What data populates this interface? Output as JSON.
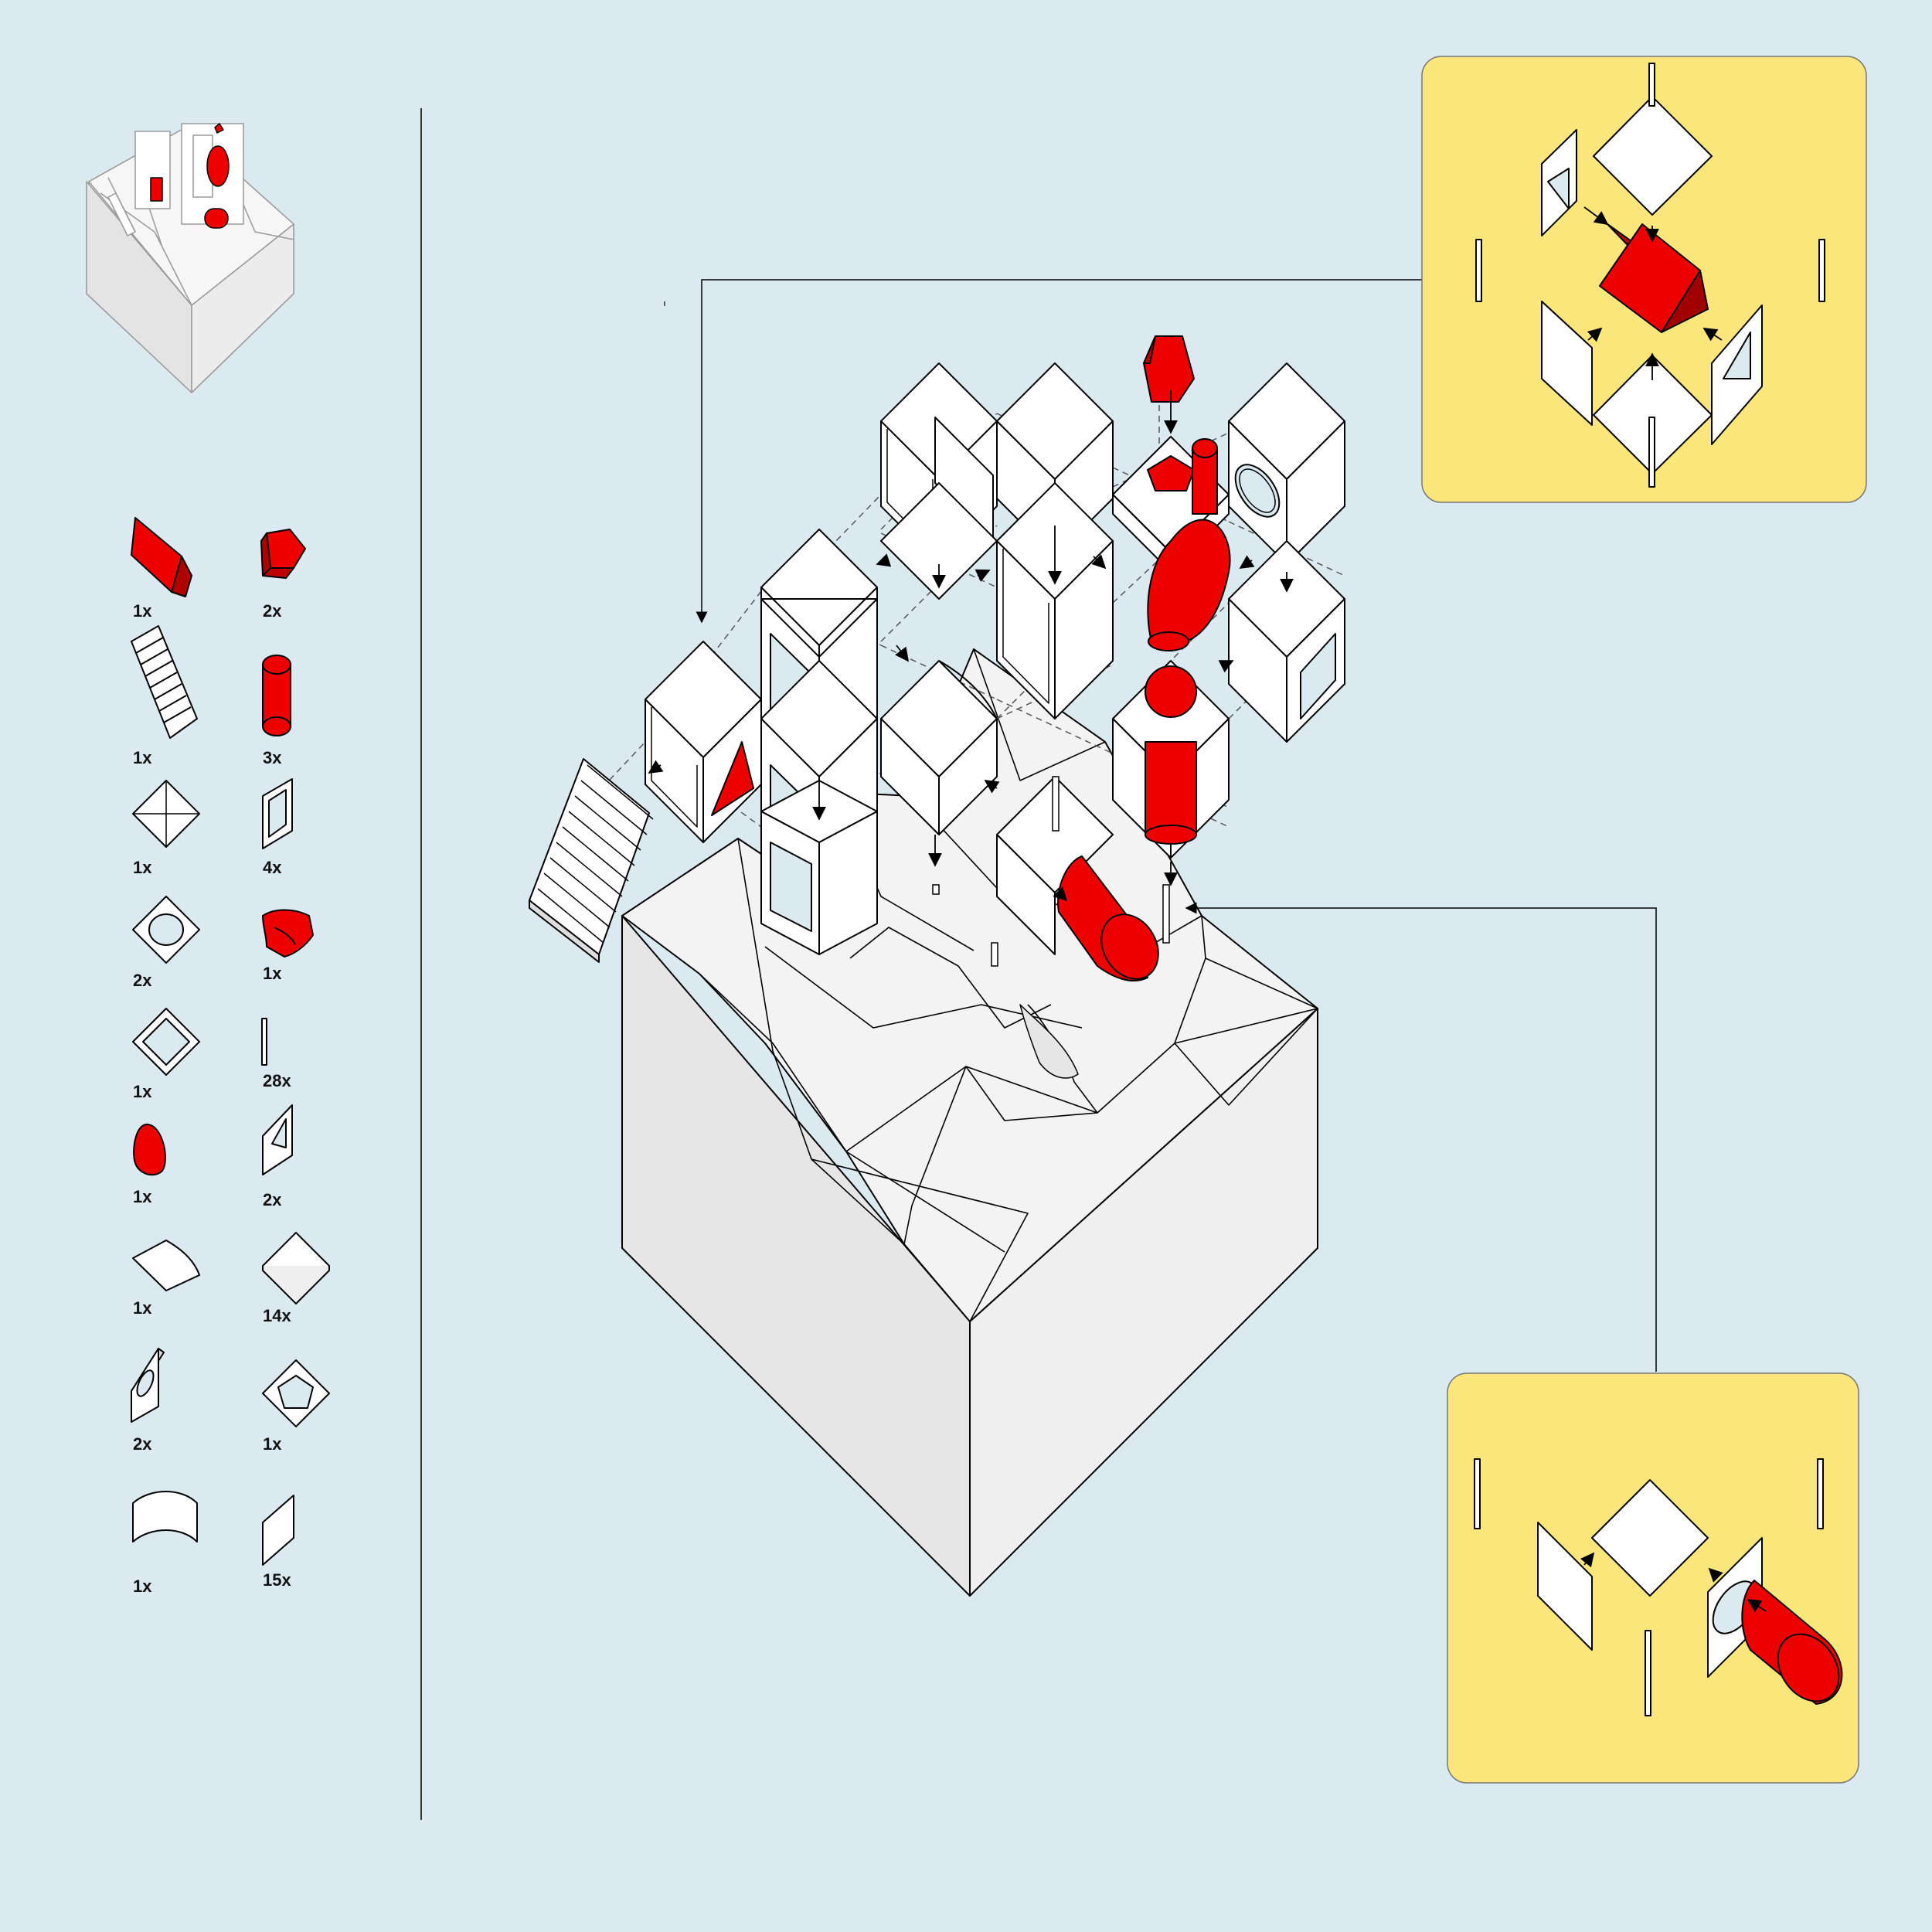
{
  "colors": {
    "background": "#dbeaf0",
    "accent_red": "#ee0000",
    "panel_yellow": "#fbe67c",
    "stroke": "#000000",
    "face_white": "#ffffff",
    "terrain_top": "#f3f3f3",
    "terrain_side": "#e6e6e6"
  },
  "parts_list": {
    "left_column": [
      {
        "icon": "red-wedge-icon",
        "qty": "1x"
      },
      {
        "icon": "staircase-icon",
        "qty": "1x"
      },
      {
        "icon": "pyramid-roof-icon",
        "qty": "1x"
      },
      {
        "icon": "round-hole-plate-icon",
        "qty": "2x"
      },
      {
        "icon": "square-frame-plate-icon",
        "qty": "1x"
      },
      {
        "icon": "red-egg-icon",
        "qty": "1x"
      },
      {
        "icon": "quarter-disc-icon",
        "qty": "1x"
      },
      {
        "icon": "oval-hole-panel-icon",
        "qty": "2x"
      },
      {
        "icon": "curved-panel-icon",
        "qty": "1x"
      }
    ],
    "right_column": [
      {
        "icon": "red-pentagon-prism-icon",
        "qty": "2x"
      },
      {
        "icon": "red-cylinder-icon",
        "qty": "3x"
      },
      {
        "icon": "framed-panel-icon",
        "qty": "4x"
      },
      {
        "icon": "red-elbow-pipe-icon",
        "qty": "1x"
      },
      {
        "icon": "rod-icon",
        "qty": "28x"
      },
      {
        "icon": "triangle-window-panel-icon",
        "qty": "2x"
      },
      {
        "icon": "square-plate-icon",
        "qty": "14x"
      },
      {
        "icon": "pentagon-hole-plate-icon",
        "qty": "1x"
      },
      {
        "icon": "flat-panel-icon",
        "qty": "15x"
      }
    ]
  }
}
